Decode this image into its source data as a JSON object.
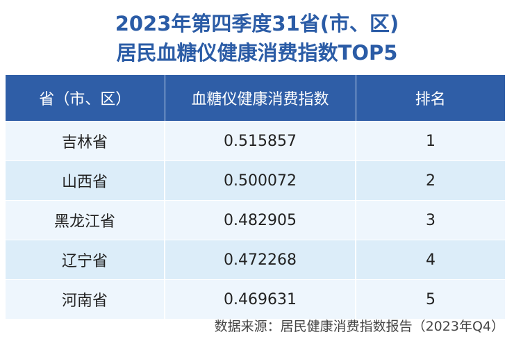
{
  "title_line1": "2023年第四季度31省(市、区)",
  "title_line2": "居民血糖仪健康消费指数TOP5",
  "colors": {
    "title": "#2b5ca6",
    "header_bg": "#2f5ea7",
    "row_light": "#eef6fd",
    "row_dark": "#dcedf9"
  },
  "chart_data": {
    "type": "table",
    "columns": [
      "省（市、区）",
      "血糖仪健康消费指数",
      "排名"
    ],
    "rows": [
      [
        "吉林省",
        "0.515857",
        "1"
      ],
      [
        "山西省",
        "0.500072",
        "2"
      ],
      [
        "黑龙江省",
        "0.482905",
        "3"
      ],
      [
        "辽宁省",
        "0.472268",
        "4"
      ],
      [
        "河南省",
        "0.469631",
        "5"
      ]
    ]
  },
  "source": "数据来源：居民健康消费指数报告（2023年Q4）"
}
